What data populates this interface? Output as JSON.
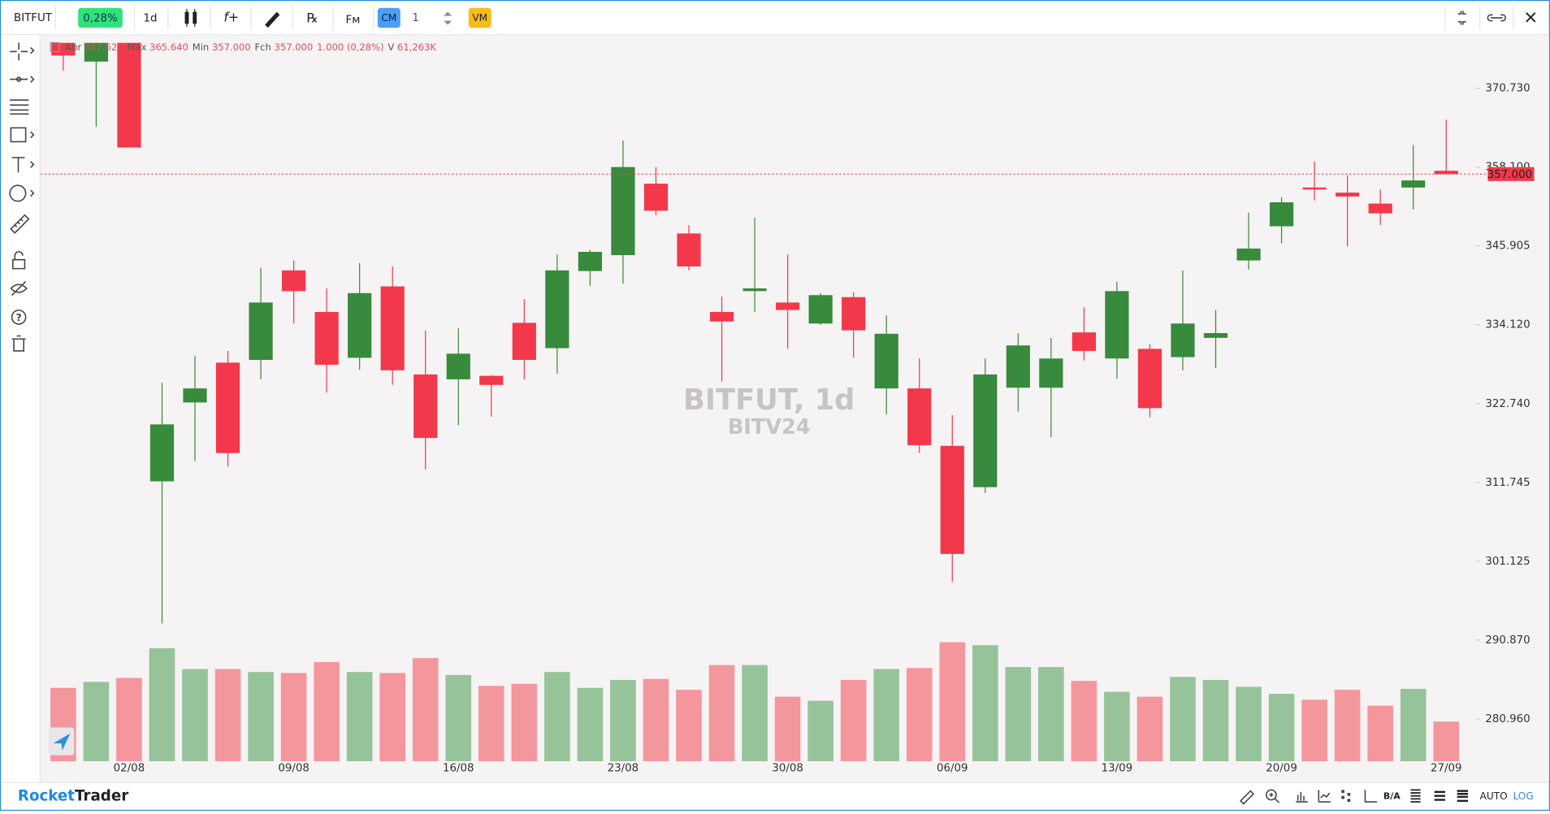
{
  "toolbar": {
    "symbol": "BITFUT",
    "change": "0,28%",
    "interval": "1d",
    "cm": "CM",
    "quantity": "1",
    "vm": "VM"
  },
  "chart_data": {
    "type": "candlestick",
    "watermark_title": "BITFUT, 1d",
    "watermark_subtitle": "BITV24",
    "readout": [
      {
        "label": "Abr",
        "value": "357.520"
      },
      {
        "label": "Máx",
        "value": "365.640"
      },
      {
        "label": "Min",
        "value": "357.000"
      },
      {
        "label": "Fch",
        "value": "357.000"
      },
      {
        "label": null,
        "value": "1.000 (0,28%)"
      },
      {
        "label": "V",
        "value": "61,263K"
      }
    ],
    "categories": [
      null,
      null,
      "02/08",
      null,
      null,
      null,
      null,
      "09/08",
      null,
      null,
      null,
      null,
      "16/08",
      null,
      null,
      null,
      null,
      "23/08",
      null,
      null,
      null,
      null,
      "30/08",
      null,
      null,
      null,
      null,
      "06/09",
      null,
      null,
      null,
      null,
      "13/09",
      null,
      null,
      null,
      null,
      "20/09",
      null,
      null,
      null,
      null,
      "27/09"
    ],
    "open": [
      378.2,
      375.1,
      378.2,
      311.9,
      322.9,
      328.6,
      329.0,
      342.2,
      336.0,
      329.3,
      339.8,
      326.9,
      326.2,
      326.7,
      334.4,
      330.7,
      342.1,
      344.5,
      355.5,
      347.8,
      336.0,
      339.1,
      337.4,
      334.3,
      338.2,
      324.9,
      324.9,
      316.8,
      311.1,
      325.0,
      325.0,
      333.0,
      329.2,
      330.6,
      329.4,
      332.2,
      343.7,
      348.9,
      354.9,
      354.1,
      352.4,
      354.9,
      357.52
    ],
    "high": [
      378.2,
      378.2,
      378.2,
      325.7,
      329.6,
      330.3,
      342.6,
      343.7,
      339.5,
      343.3,
      342.8,
      333.3,
      333.6,
      326.8,
      337.9,
      344.6,
      345.3,
      362.3,
      358.1,
      349.1,
      338.3,
      350.2,
      344.6,
      338.8,
      338.9,
      335.5,
      329.2,
      321.1,
      329.2,
      332.9,
      332.2,
      336.7,
      340.5,
      331.3,
      342.2,
      336.3,
      351.0,
      353.4,
      359.0,
      356.8,
      354.6,
      361.6,
      365.64
    ],
    "low": [
      373.6,
      364.5,
      361.2,
      293.0,
      314.7,
      313.9,
      326.2,
      334.3,
      324.3,
      327.6,
      325.4,
      313.5,
      319.7,
      320.9,
      326.2,
      327.0,
      339.9,
      340.2,
      350.6,
      342.2,
      325.9,
      336.0,
      330.6,
      334.1,
      329.3,
      321.2,
      315.8,
      298.4,
      310.3,
      321.6,
      318.0,
      328.9,
      326.3,
      320.8,
      327.5,
      327.8,
      342.3,
      346.3,
      352.9,
      345.8,
      349.1,
      351.5,
      357.0
    ],
    "close": [
      376.1,
      378.2,
      361.2,
      319.8,
      324.9,
      315.8,
      337.4,
      339.1,
      328.3,
      338.8,
      327.5,
      317.9,
      329.9,
      325.4,
      329.0,
      342.2,
      345.0,
      358.1,
      351.3,
      342.8,
      334.6,
      339.5,
      336.3,
      338.5,
      333.3,
      332.8,
      316.9,
      302.1,
      326.9,
      331.1,
      329.2,
      330.3,
      339.1,
      322.1,
      334.3,
      332.9,
      345.5,
      352.6,
      354.6,
      353.5,
      350.9,
      356.0,
      357.0
    ],
    "volume": [
      113300,
      122500,
      128700,
      174600,
      142400,
      142400,
      137800,
      136300,
      153200,
      137800,
      136300,
      159300,
      133200,
      116400,
      119500,
      137800,
      113300,
      125600,
      127100,
      110300,
      148600,
      148600,
      99600,
      93400,
      125600,
      142400,
      144000,
      183800,
      179200,
      145500,
      145500,
      124100,
      107200,
      99600,
      130200,
      125600,
      114900,
      104100,
      95000,
      110300,
      85800,
      111800,
      61263
    ],
    "volume_ylim": [
      0,
      200000
    ],
    "up_color": "#388a3c",
    "down_color": "#f2384a",
    "up_volume_color": "#97c39b",
    "down_volume_color": "#f4979d",
    "log": true,
    "ylim": [
      275.79,
      379.56
    ],
    "yticks": [
      {
        "value": 370.73,
        "label": "370.730"
      },
      {
        "value": 358.1,
        "label": "358.100"
      },
      {
        "value": 345.905,
        "label": "345.905"
      },
      {
        "value": 334.12,
        "label": "334.120"
      },
      {
        "value": 322.74,
        "label": "322.740"
      },
      {
        "value": 311.745,
        "label": "311.745"
      },
      {
        "value": 301.125,
        "label": "301.125"
      },
      {
        "value": 290.87,
        "label": "290.870"
      },
      {
        "value": 280.96,
        "label": "280.960"
      }
    ],
    "current_price": {
      "value": 357,
      "label": "357.000"
    }
  },
  "footer": {
    "brand_a": "Rocket",
    "brand_b": "Trader",
    "ba": "B/A",
    "auto": "AUTO",
    "log": "LOG"
  }
}
